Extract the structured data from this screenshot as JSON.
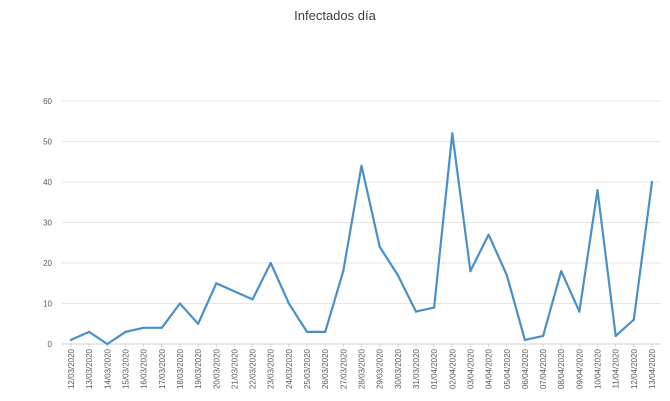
{
  "chart_data": {
    "type": "line",
    "title": "Infectados día",
    "xlabel": "",
    "ylabel": "",
    "ylim": [
      0,
      60
    ],
    "yticks": [
      0,
      10,
      20,
      30,
      40,
      50,
      60
    ],
    "grid": true,
    "legend": "none",
    "series_color": "#4a90c8",
    "categories": [
      "12/03/2020",
      "13/03/2020",
      "14/03/2020",
      "15/03/2020",
      "16/03/2020",
      "17/03/2020",
      "18/03/2020",
      "19/03/2020",
      "20/03/2020",
      "21/03/2020",
      "22/03/2020",
      "23/03/2020",
      "24/03/2020",
      "25/03/2020",
      "26/03/2020",
      "27/03/2020",
      "28/03/2020",
      "29/03/2020",
      "30/03/2020",
      "31/03/2020",
      "01/04/2020",
      "02/04/2020",
      "03/04/2020",
      "04/04/2020",
      "05/04/2020",
      "06/04/2020",
      "07/04/2020",
      "08/04/2020",
      "09/04/2020",
      "10/04/2020",
      "11/04/2020",
      "12/04/2020",
      "13/04/2020"
    ],
    "series": [
      {
        "values": [
          1,
          3,
          0,
          3,
          4,
          4,
          10,
          5,
          15,
          13,
          11,
          20,
          10,
          3,
          3,
          18,
          44,
          24,
          17,
          8,
          9,
          52,
          18,
          27,
          17,
          1,
          2,
          18,
          8,
          38,
          2,
          6,
          40
        ]
      }
    ]
  }
}
